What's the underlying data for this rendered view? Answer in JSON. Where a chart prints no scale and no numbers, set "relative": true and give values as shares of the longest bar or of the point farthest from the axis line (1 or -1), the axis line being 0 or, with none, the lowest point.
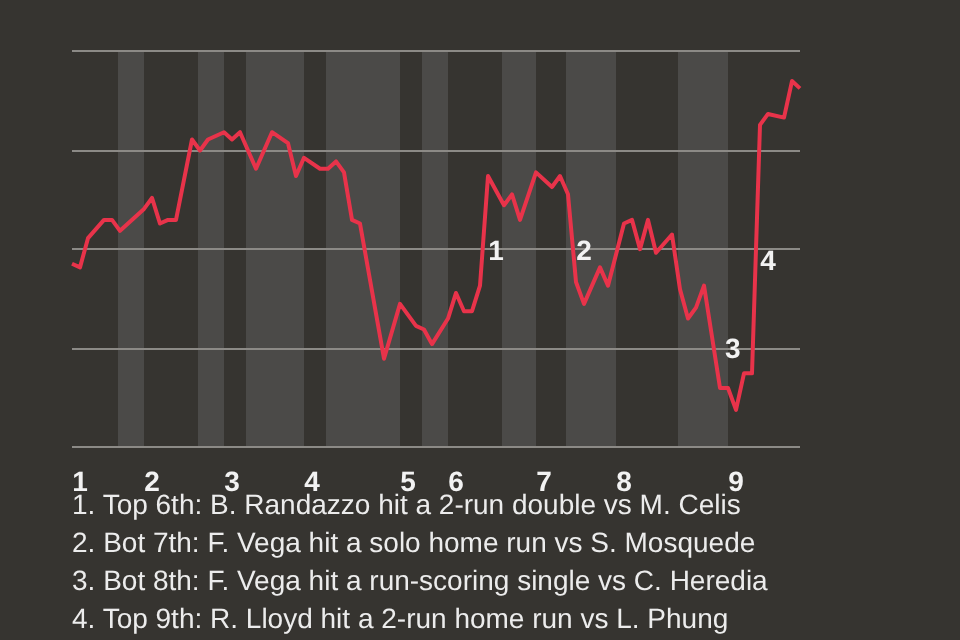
{
  "chart_data": {
    "type": "line",
    "relative": true,
    "grid": "y",
    "marker": "none",
    "legend": false,
    "categories": [
      null,
      "1",
      null,
      null,
      null,
      null,
      null,
      null,
      null,
      null,
      "2",
      null,
      null,
      null,
      null,
      null,
      null,
      null,
      null,
      null,
      "3",
      null,
      null,
      null,
      null,
      null,
      null,
      null,
      null,
      null,
      "4",
      null,
      null,
      null,
      null,
      null,
      null,
      null,
      null,
      null,
      null,
      null,
      "5",
      null,
      null,
      null,
      null,
      null,
      "6",
      null,
      null,
      null,
      null,
      null,
      null,
      null,
      null,
      null,
      null,
      "7",
      null,
      null,
      null,
      null,
      null,
      null,
      null,
      null,
      null,
      "8",
      null,
      null,
      null,
      null,
      null,
      null,
      null,
      null,
      null,
      null,
      null,
      null,
      null,
      "9",
      null,
      null,
      null,
      null,
      null,
      null,
      null,
      null
    ],
    "series": [
      {
        "color": "#e8334a",
        "values": [
          0.5,
          0.49,
          0.57,
          null,
          0.62,
          0.62,
          0.59,
          null,
          0.63,
          0.65,
          0.68,
          0.61,
          0.62,
          0.62,
          null,
          0.84,
          0.81,
          0.84,
          null,
          0.86,
          0.84,
          0.86,
          null,
          0.76,
          null,
          0.86,
          null,
          0.83,
          0.74,
          0.79,
          null,
          0.76,
          0.76,
          0.78,
          0.75,
          0.62,
          0.61,
          null,
          null,
          0.24,
          null,
          0.39,
          null,
          0.33,
          0.32,
          0.28,
          null,
          0.35,
          0.42,
          0.37,
          0.37,
          0.44,
          0.74,
          null,
          0.66,
          0.69,
          0.62,
          null,
          0.75,
          null,
          0.71,
          0.74,
          0.69,
          0.45,
          0.39,
          null,
          0.49,
          0.44,
          null,
          0.61,
          0.62,
          0.54,
          0.62,
          0.53,
          null,
          0.58,
          0.43,
          0.35,
          0.38,
          0.44,
          0.3,
          0.16,
          0.16,
          0.1,
          0.2,
          0.2,
          0.88,
          0.91,
          null,
          0.9,
          1.0,
          0.98
        ]
      }
    ],
    "annotations": [
      "1",
      "2",
      "3",
      "4",
      "1. Top 6th: B. Randazzo hit a 2-run double vs M. Celis",
      "2. Bot 7th: F. Vega hit a solo home run vs S. Mosquede",
      "3. Bot 8th: F. Vega hit a run-scoring single vs C. Heredia",
      "4. Top 9th: R. Lloyd hit a 2-run home run vs L. Phung"
    ]
  }
}
